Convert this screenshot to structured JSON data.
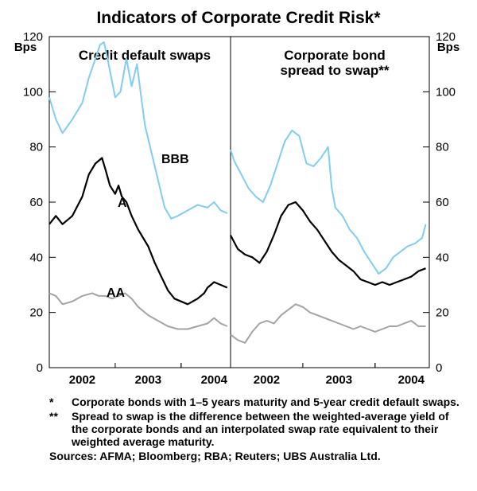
{
  "title": "Indicators of Corporate Credit Risk*",
  "chart_data": [
    {
      "type": "line",
      "title": "Credit default swaps",
      "ylabel": "Bps",
      "ylim": [
        0,
        120
      ],
      "yticks": [
        0,
        20,
        40,
        60,
        80,
        100,
        120
      ],
      "xlim": [
        2001.5,
        2004.25
      ],
      "xticks": [
        2002,
        2003,
        2004
      ],
      "xtick_labels": [
        "2002",
        "2003",
        "2004"
      ],
      "series": [
        {
          "name": "BBB",
          "color": "#7fcdf0",
          "x": [
            2001.5,
            2001.6,
            2001.7,
            2001.85,
            2002.0,
            2002.1,
            2002.2,
            2002.27,
            2002.33,
            2002.4,
            2002.5,
            2002.58,
            2002.67,
            2002.75,
            2002.83,
            2002.9,
            2002.95,
            2003.05,
            2003.15,
            2003.25,
            2003.35,
            2003.45,
            2003.6,
            2003.75,
            2003.9,
            2004.0,
            2004.1,
            2004.2
          ],
          "values": [
            98,
            90,
            85,
            90,
            96,
            105,
            112,
            117,
            118,
            110,
            98,
            100,
            112,
            102,
            110,
            97,
            88,
            78,
            68,
            58,
            54,
            55,
            57,
            59,
            58,
            60,
            57,
            56
          ]
        },
        {
          "name": "A",
          "color": "#000000",
          "x": [
            2001.5,
            2001.6,
            2001.7,
            2001.85,
            2002.0,
            2002.1,
            2002.2,
            2002.3,
            2002.35,
            2002.42,
            2002.5,
            2002.55,
            2002.6,
            2002.67,
            2002.75,
            2002.85,
            2003.0,
            2003.1,
            2003.2,
            2003.3,
            2003.4,
            2003.5,
            2003.6,
            2003.75,
            2003.85,
            2003.9,
            2004.0,
            2004.1,
            2004.2
          ],
          "values": [
            52,
            55,
            52,
            55,
            62,
            70,
            74,
            76,
            72,
            66,
            63,
            66,
            62,
            60,
            55,
            50,
            44,
            38,
            33,
            28,
            25,
            24,
            23,
            25,
            27,
            29,
            31,
            30,
            29
          ]
        },
        {
          "name": "AA",
          "color": "#a3a3a3",
          "x": [
            2001.5,
            2001.6,
            2001.7,
            2001.85,
            2002.0,
            2002.15,
            2002.25,
            2002.35,
            2002.45,
            2002.55,
            2002.65,
            2002.75,
            2002.85,
            2003.0,
            2003.15,
            2003.3,
            2003.45,
            2003.6,
            2003.75,
            2003.9,
            2004.0,
            2004.1,
            2004.2
          ],
          "values": [
            27,
            26,
            23,
            24,
            26,
            27,
            26,
            26,
            25,
            26,
            27,
            25,
            22,
            19,
            17,
            15,
            14,
            14,
            15,
            16,
            18,
            16,
            15
          ]
        }
      ]
    },
    {
      "type": "line",
      "title": "Corporate bond spread to swap**",
      "ylabel": "Bps",
      "ylim": [
        0,
        120
      ],
      "yticks": [
        0,
        20,
        40,
        60,
        80,
        100,
        120
      ],
      "xlim": [
        2001.5,
        2004.25
      ],
      "xticks": [
        2002,
        2003,
        2004
      ],
      "xtick_labels": [
        "2002",
        "2003",
        "2004"
      ],
      "series": [
        {
          "name": "BBB",
          "color": "#7fcdf0",
          "x": [
            2001.5,
            2001.55,
            2001.65,
            2001.75,
            2001.85,
            2001.95,
            2002.05,
            2002.15,
            2002.25,
            2002.35,
            2002.45,
            2002.55,
            2002.65,
            2002.75,
            2002.85,
            2002.9,
            2002.95,
            2003.05,
            2003.15,
            2003.25,
            2003.35,
            2003.45,
            2003.55,
            2003.65,
            2003.75,
            2003.85,
            2003.95,
            2004.05,
            2004.15,
            2004.2
          ],
          "values": [
            79,
            75,
            70,
            65,
            62,
            60,
            66,
            74,
            82,
            86,
            84,
            74,
            73,
            76,
            80,
            65,
            58,
            55,
            50,
            47,
            42,
            38,
            34,
            36,
            40,
            42,
            44,
            45,
            47,
            52
          ]
        },
        {
          "name": "A",
          "color": "#000000",
          "x": [
            2001.5,
            2001.6,
            2001.7,
            2001.8,
            2001.9,
            2002.0,
            2002.1,
            2002.2,
            2002.3,
            2002.4,
            2002.5,
            2002.6,
            2002.7,
            2002.8,
            2002.9,
            2003.0,
            2003.1,
            2003.2,
            2003.3,
            2003.4,
            2003.5,
            2003.6,
            2003.7,
            2003.8,
            2003.9,
            2004.0,
            2004.1,
            2004.2
          ],
          "values": [
            48,
            43,
            41,
            40,
            38,
            42,
            48,
            55,
            59,
            60,
            57,
            53,
            50,
            46,
            42,
            39,
            37,
            35,
            32,
            31,
            30,
            31,
            30,
            31,
            32,
            33,
            35,
            36
          ]
        },
        {
          "name": "AA",
          "color": "#a3a3a3",
          "x": [
            2001.5,
            2001.6,
            2001.7,
            2001.8,
            2001.9,
            2002.0,
            2002.1,
            2002.2,
            2002.3,
            2002.4,
            2002.5,
            2002.6,
            2002.7,
            2002.8,
            2002.9,
            2003.0,
            2003.1,
            2003.2,
            2003.3,
            2003.4,
            2003.5,
            2003.6,
            2003.7,
            2003.8,
            2003.9,
            2004.0,
            2004.1,
            2004.2
          ],
          "values": [
            12,
            10,
            9,
            13,
            16,
            17,
            16,
            19,
            21,
            23,
            22,
            20,
            19,
            18,
            17,
            16,
            15,
            14,
            15,
            14,
            13,
            14,
            15,
            15,
            16,
            17,
            15,
            15
          ]
        }
      ]
    }
  ],
  "series_labels": {
    "bbb": "BBB",
    "a": "A",
    "aa": "AA"
  },
  "footnotes": [
    {
      "mark": "*",
      "text": "Corporate bonds with 1–5 years maturity and 5-year credit default swaps."
    },
    {
      "mark": "**",
      "text": "Spread to swap is the difference between the weighted-average yield of the corporate bonds and an interpolated swap rate equivalent to their weighted average maturity."
    }
  ],
  "sources": "Sources: AFMA; Bloomberg; RBA; Reuters; UBS Australia Ltd."
}
